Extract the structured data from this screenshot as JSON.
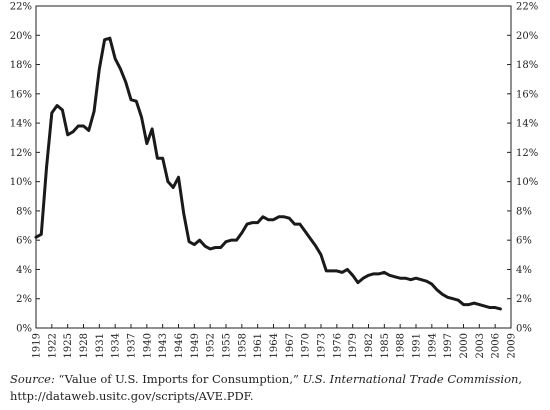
{
  "chart_data": {
    "type": "line",
    "x": [
      1919,
      1920,
      1921,
      1922,
      1923,
      1924,
      1925,
      1926,
      1927,
      1928,
      1929,
      1930,
      1931,
      1932,
      1933,
      1934,
      1935,
      1936,
      1937,
      1938,
      1939,
      1940,
      1941,
      1942,
      1943,
      1944,
      1945,
      1946,
      1947,
      1948,
      1949,
      1950,
      1951,
      1952,
      1953,
      1954,
      1955,
      1956,
      1957,
      1958,
      1959,
      1960,
      1961,
      1962,
      1963,
      1964,
      1965,
      1966,
      1967,
      1968,
      1969,
      1970,
      1971,
      1972,
      1973,
      1974,
      1975,
      1976,
      1977,
      1978,
      1979,
      1980,
      1981,
      1982,
      1983,
      1984,
      1985,
      1986,
      1987,
      1988,
      1989,
      1990,
      1991,
      1992,
      1993,
      1994,
      1995,
      1996,
      1997,
      1998,
      1999,
      2000,
      2001,
      2002,
      2003,
      2004,
      2005,
      2006,
      2007
    ],
    "series": [
      {
        "values": [
          6.2,
          6.4,
          11.0,
          14.7,
          15.2,
          14.9,
          13.2,
          13.4,
          13.8,
          13.8,
          13.5,
          14.8,
          17.7,
          19.7,
          19.8,
          18.4,
          17.7,
          16.8,
          15.6,
          15.5,
          14.4,
          12.6,
          13.6,
          11.6,
          11.6,
          10.0,
          9.6,
          10.3,
          7.8,
          5.9,
          5.7,
          6.0,
          5.6,
          5.4,
          5.5,
          5.5,
          5.9,
          6.0,
          6.0,
          6.5,
          7.1,
          7.2,
          7.2,
          7.6,
          7.4,
          7.4,
          7.6,
          7.6,
          7.5,
          7.1,
          7.1,
          6.6,
          6.1,
          5.6,
          5.0,
          3.9,
          3.9,
          3.9,
          3.8,
          4.0,
          3.6,
          3.1,
          3.4,
          3.6,
          3.7,
          3.7,
          3.8,
          3.6,
          3.5,
          3.4,
          3.4,
          3.3,
          3.4,
          3.3,
          3.2,
          3.0,
          2.6,
          2.3,
          2.1,
          2.0,
          1.9,
          1.6,
          1.6,
          1.7,
          1.6,
          1.5,
          1.4,
          1.4,
          1.3
        ]
      }
    ],
    "ylim": [
      0,
      22
    ],
    "yticks": [
      0,
      2,
      4,
      6,
      8,
      10,
      12,
      14,
      16,
      18,
      20,
      22
    ],
    "ytick_labels": [
      "0%",
      "2%",
      "4%",
      "6%",
      "8%",
      "10%",
      "12%",
      "14%",
      "16%",
      "18%",
      "20%",
      "22%"
    ],
    "xtick_labels": [
      "1919",
      "1922",
      "1925",
      "1928",
      "1931",
      "1934",
      "1937",
      "1940",
      "1943",
      "1946",
      "1949",
      "1952",
      "1955",
      "1958",
      "1961",
      "1964",
      "1967",
      "1970",
      "1973",
      "1976",
      "1979",
      "1982",
      "1985",
      "1988",
      "1991",
      "1994",
      "1997",
      "2000",
      "2003",
      "2006",
      "2009"
    ],
    "xlim": [
      1919,
      2009
    ],
    "grid": false,
    "line_color": "#1a1a1a"
  },
  "source": {
    "label": "Source:",
    "quote": "“Value of U.S. Imports for Consumption,”",
    "publication": "U.S. International Trade Commission",
    "rest": ", http://dataweb.usitc.gov/scripts/AVE.PDF."
  }
}
